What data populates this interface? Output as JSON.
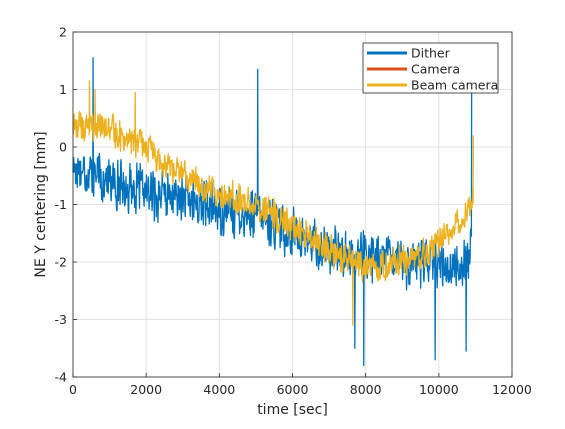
{
  "chart_data": {
    "type": "line",
    "xlabel": "time [sec]",
    "ylabel": "NE Y centering [mm]",
    "xlim": [
      0,
      12000
    ],
    "ylim": [
      -4,
      2
    ],
    "xticks": [
      0,
      2000,
      4000,
      6000,
      8000,
      10000,
      12000
    ],
    "yticks": [
      -4,
      -3,
      -2,
      -1,
      0,
      1,
      2
    ],
    "grid": true,
    "legend_position": "top-right",
    "legend": [
      "Dither",
      "Camera",
      "Beam camera"
    ],
    "series": [
      {
        "name": "Dither",
        "color": "#0072BD",
        "noise": 0.5,
        "trend": [
          [
            0,
            -0.3
          ],
          [
            1000,
            -0.6
          ],
          [
            2000,
            -0.8
          ],
          [
            3000,
            -0.9
          ],
          [
            4000,
            -1.1
          ],
          [
            5000,
            -1.2
          ],
          [
            6000,
            -1.5
          ],
          [
            7000,
            -1.8
          ],
          [
            8000,
            -1.9
          ],
          [
            9000,
            -2.0
          ],
          [
            10000,
            -2.0
          ],
          [
            10500,
            -2.1
          ],
          [
            10900,
            -1.8
          ]
        ],
        "spikes": [
          [
            550,
            1.55
          ],
          [
            5050,
            1.35
          ],
          [
            7700,
            -3.5
          ],
          [
            7950,
            -3.8
          ],
          [
            9900,
            -3.7
          ],
          [
            10750,
            -3.55
          ],
          [
            10960,
            1.8
          ]
        ]
      },
      {
        "name": "Camera",
        "color": "#D95319",
        "noise": 0.0,
        "trend": [],
        "spikes": []
      },
      {
        "name": "Beam camera",
        "color": "#EDB120",
        "noise": 0.32,
        "trend": [
          [
            0,
            0.4
          ],
          [
            1000,
            0.3
          ],
          [
            2000,
            0.0
          ],
          [
            3000,
            -0.5
          ],
          [
            4000,
            -0.8
          ],
          [
            5000,
            -1.0
          ],
          [
            6000,
            -1.4
          ],
          [
            7000,
            -1.8
          ],
          [
            8000,
            -2.1
          ],
          [
            9000,
            -2.0
          ],
          [
            10000,
            -1.7
          ],
          [
            10500,
            -1.3
          ],
          [
            10950,
            -0.9
          ]
        ],
        "spikes": [
          [
            450,
            1.15
          ],
          [
            600,
            1.0
          ],
          [
            1700,
            0.95
          ],
          [
            7650,
            -3.1
          ],
          [
            10950,
            0.2
          ]
        ]
      }
    ]
  }
}
